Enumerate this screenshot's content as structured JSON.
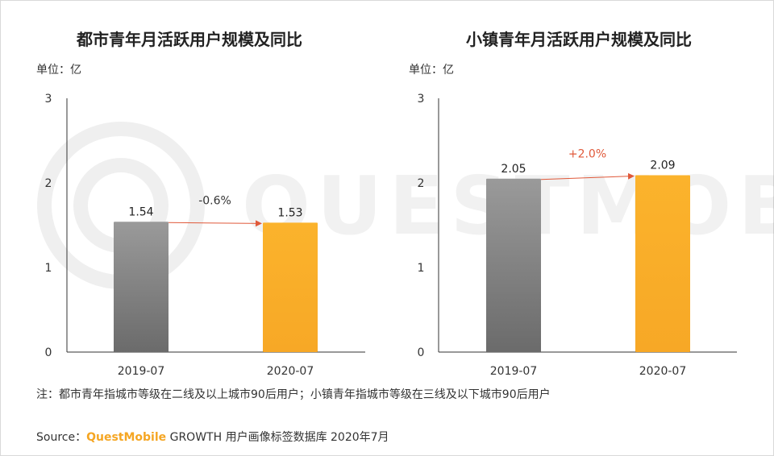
{
  "chart_data": [
    {
      "type": "bar",
      "title": "都市青年月活跃用户规模及同比",
      "unit_label": "单位：亿",
      "categories": [
        "2019-07",
        "2020-07"
      ],
      "values": [
        1.54,
        1.53
      ],
      "value_labels": [
        "1.54",
        "1.53"
      ],
      "y_ticks": [
        "0",
        "1",
        "2",
        "3"
      ],
      "ylim": [
        0,
        3
      ],
      "growth_label": "-0.6%",
      "growth_color": "#333333",
      "bar_colors": [
        "#8c8c8c",
        "#fbb32c"
      ]
    },
    {
      "type": "bar",
      "title": "小镇青年月活跃用户规模及同比",
      "unit_label": "单位：亿",
      "categories": [
        "2019-07",
        "2020-07"
      ],
      "values": [
        2.05,
        2.09
      ],
      "value_labels": [
        "2.05",
        "2.09"
      ],
      "y_ticks": [
        "0",
        "1",
        "2",
        "3"
      ],
      "ylim": [
        0,
        3
      ],
      "growth_label": "+2.0%",
      "growth_color": "#e0593a",
      "bar_colors": [
        "#8c8c8c",
        "#fbb32c"
      ]
    }
  ],
  "note": "注：都市青年指城市等级在二线及以上城市90后用户；小镇青年指城市等级在三线及以下城市90后用户",
  "source": {
    "prefix": "Source：",
    "brand": "QuestMobile",
    "suffix": " GROWTH 用户画像标签数据库 2020年7月"
  },
  "watermark": "QUESTMOBILE",
  "colors": {
    "arrow": "#e0593a",
    "axis": "#333333",
    "brand": "#f5a623"
  }
}
